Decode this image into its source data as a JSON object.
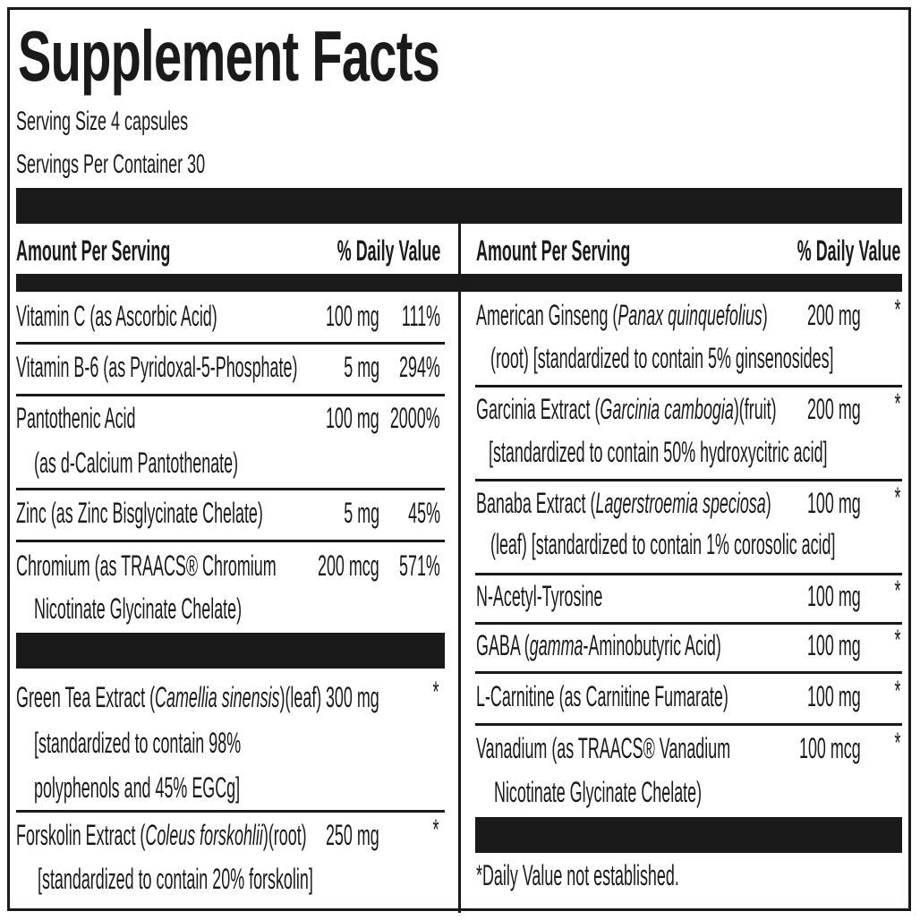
{
  "title": "Supplement Facts",
  "serving_size": "Serving Size 4 capsules",
  "servings_per_container": "Servings Per Container 30",
  "left": {
    "header": {
      "amount": "Amount Per Serving",
      "dv": "% Daily Value"
    },
    "rows": [
      {
        "lines": [
          [
            {
              "t": "Vitamin C (as Ascorbic Acid)"
            }
          ]
        ],
        "amount": "100 mg",
        "dv": "111%"
      },
      {
        "lines": [
          [
            {
              "t": "Vitamin B-6 (as Pyridoxal-5-Phosphate)"
            }
          ]
        ],
        "amount": "5 mg",
        "dv": "294%"
      },
      {
        "lines": [
          [
            {
              "t": "Pantothenic Acid"
            }
          ],
          [
            {
              "t": "(as d-Calcium Pantothenate)"
            }
          ]
        ],
        "amount": "100 mg",
        "dv": "2000%"
      },
      {
        "lines": [
          [
            {
              "t": "Zinc (as Zinc Bisglycinate Chelate)"
            }
          ]
        ],
        "amount": "5 mg",
        "dv": "45%"
      },
      {
        "lines": [
          [
            {
              "t": "Chromium (as TRAACS® Chromium"
            }
          ],
          [
            {
              "t": "Nicotinate Glycinate Chelate)"
            }
          ]
        ],
        "amount": "200 mcg",
        "dv": "571%"
      },
      {
        "lines": [
          [
            {
              "t": "Green Tea Extract ("
            },
            {
              "t": "Camellia sinensis",
              "i": true
            },
            {
              "t": ")(leaf)"
            }
          ],
          [
            {
              "t": "[standardized to contain 98%"
            }
          ],
          [
            {
              "t": "polyphenols and 45% EGCg]"
            }
          ]
        ],
        "amount": "300 mg",
        "dv": "*"
      },
      {
        "lines": [
          [
            {
              "t": "Forskolin Extract ("
            },
            {
              "t": "Coleus forskohlii",
              "i": true
            },
            {
              "t": ")(root)"
            }
          ],
          [
            {
              "t": "[standardized to contain 20% forskolin]"
            }
          ]
        ],
        "amount": "250 mg",
        "dv": "*"
      }
    ]
  },
  "right": {
    "header": {
      "amount": "Amount Per Serving",
      "dv": "% Daily Value"
    },
    "rows": [
      {
        "lines": [
          [
            {
              "t": "American Ginseng ("
            },
            {
              "t": "Panax quinquefolius",
              "i": true
            },
            {
              "t": ")"
            }
          ],
          [
            {
              "t": "(root) [standardized to contain 5% ginsenosides]"
            }
          ]
        ],
        "amount": "200 mg",
        "dv": "*"
      },
      {
        "lines": [
          [
            {
              "t": "Garcinia Extract ("
            },
            {
              "t": "Garcinia cambogia",
              "i": true
            },
            {
              "t": ")(fruit)"
            }
          ],
          [
            {
              "t": "[standardized to contain 50% hydroxycitric acid]"
            }
          ]
        ],
        "amount": "200 mg",
        "dv": "*"
      },
      {
        "lines": [
          [
            {
              "t": "Banaba Extract ("
            },
            {
              "t": "Lagerstroemia speciosa",
              "i": true
            },
            {
              "t": ")"
            }
          ],
          [
            {
              "t": "(leaf) [standardized to contain 1% corosolic acid]"
            }
          ]
        ],
        "amount": "100 mg",
        "dv": "*"
      },
      {
        "lines": [
          [
            {
              "t": "N-Acetyl-Tyrosine"
            }
          ]
        ],
        "amount": "100 mg",
        "dv": "*"
      },
      {
        "lines": [
          [
            {
              "t": "GABA ("
            },
            {
              "t": "gamma",
              "i": true
            },
            {
              "t": "-Aminobutyric Acid)"
            }
          ]
        ],
        "amount": "100 mg",
        "dv": "*"
      },
      {
        "lines": [
          [
            {
              "t": "L-Carnitine (as Carnitine Fumarate)"
            }
          ]
        ],
        "amount": "100 mg",
        "dv": "*"
      },
      {
        "lines": [
          [
            {
              "t": "Vanadium (as TRAACS® Vanadium"
            }
          ],
          [
            {
              "t": "Nicotinate Glycinate Chelate)"
            }
          ]
        ],
        "amount": "100 mcg",
        "dv": "*"
      }
    ]
  },
  "footnote": "*Daily Value not established."
}
